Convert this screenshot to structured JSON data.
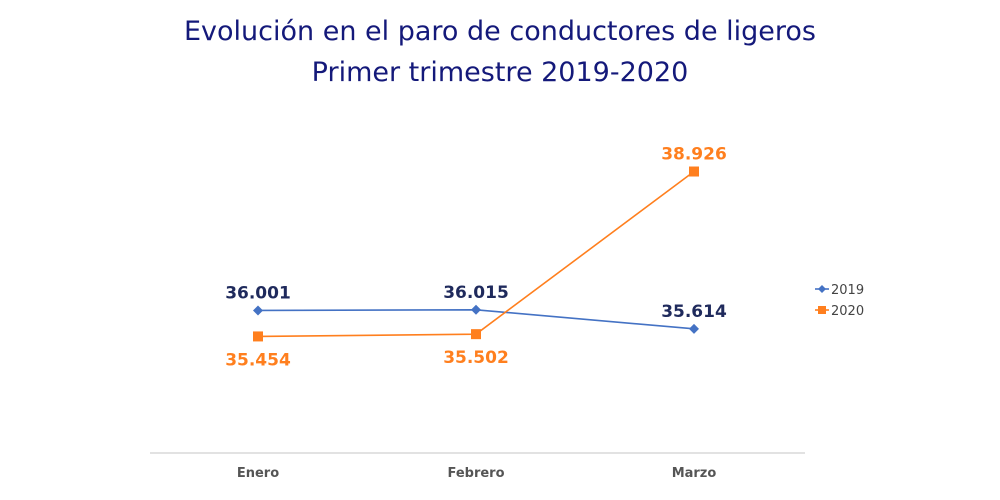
{
  "chart_data": {
    "type": "line",
    "title": "Evolución en el paro de conductores de ligeros",
    "subtitle": "Primer trimestre 2019-2020",
    "categories": [
      "Enero",
      "Febrero",
      "Marzo"
    ],
    "series": [
      {
        "name": "2019",
        "values": [
          36001,
          36015,
          35614
        ],
        "labels": [
          "36.001",
          "36.015",
          "35.614"
        ],
        "color": "#4472c4",
        "label_color": "#1f2a5c",
        "marker": "diamond"
      },
      {
        "name": "2020",
        "values": [
          35454,
          35502,
          38926
        ],
        "labels": [
          "35.454",
          "35.502",
          "38.926"
        ],
        "color": "#ff7f1e",
        "label_color": "#ff7f1e",
        "marker": "square"
      }
    ],
    "ylim": [
      33000,
      40000
    ],
    "grid": false,
    "legend": "right"
  }
}
